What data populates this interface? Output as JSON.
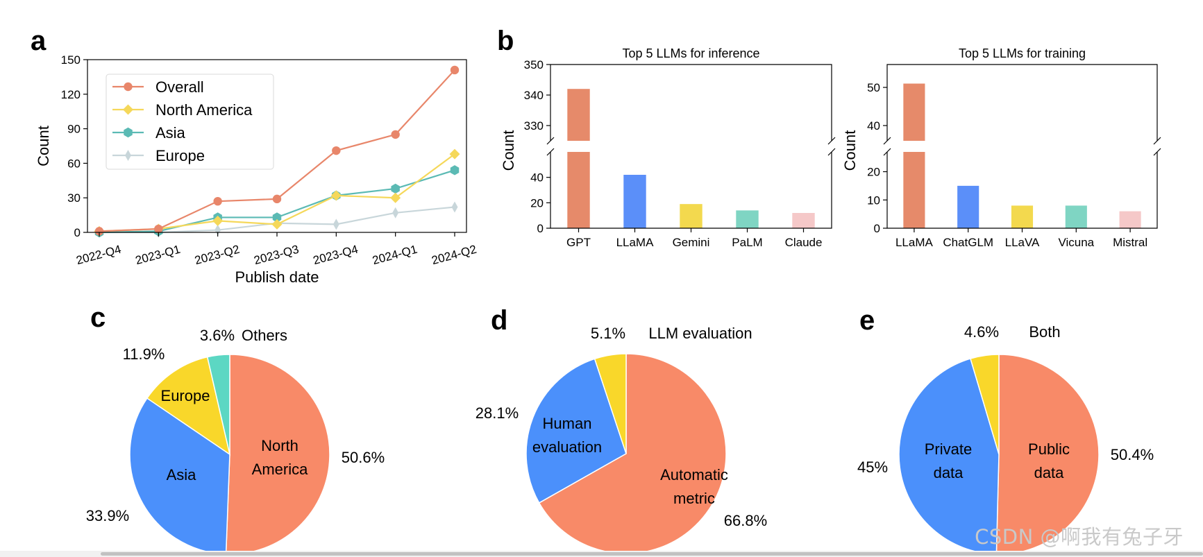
{
  "colors": {
    "overall": "#e8866a",
    "north_america": "#f5d85a",
    "asia": "#5bbab4",
    "europe": "#c8d6da",
    "gpt_llama_bar": "#e68a6a",
    "blue": "#5b8ff9",
    "yellow": "#f3d94e",
    "teal": "#7fd5c3",
    "pink": "#f5c8c8",
    "pie_orange": "#f88a68",
    "pie_blue": "#4b90fb",
    "pie_yellow": "#f9d72a",
    "pie_teal": "#5cd7c3"
  },
  "chart_data": [
    {
      "id": "a",
      "panel_letter": "a",
      "type": "line",
      "title": "",
      "xlabel": "Publish date",
      "ylabel": "Count",
      "categories": [
        "2022-Q4",
        "2023-Q1",
        "2023-Q2",
        "2023-Q3",
        "2023-Q4",
        "2024-Q1",
        "2024-Q2"
      ],
      "ylim": [
        0,
        150
      ],
      "yticks": [
        0,
        30,
        60,
        90,
        120,
        150
      ],
      "legend_position": "upper-left",
      "series": [
        {
          "name": "Overall",
          "marker": "circle",
          "values": [
            1,
            3,
            27,
            29,
            71,
            85,
            141
          ]
        },
        {
          "name": "North America",
          "marker": "diamond",
          "values": [
            1,
            3,
            10,
            7,
            32,
            30,
            68
          ]
        },
        {
          "name": "Asia",
          "marker": "hexagon",
          "values": [
            0,
            1,
            13,
            13,
            32,
            38,
            54
          ]
        },
        {
          "name": "Europe",
          "marker": "thin-diamond",
          "values": [
            0,
            0,
            2,
            8,
            7,
            17,
            22
          ]
        }
      ]
    },
    {
      "id": "b1",
      "panel_letter": "b",
      "type": "bar",
      "title": "Top 5 LLMs for inference",
      "ylabel": "Count",
      "broken_axis": true,
      "categories": [
        "GPT",
        "LLaMA",
        "Gemini",
        "PaLM",
        "Claude"
      ],
      "values": [
        342,
        42,
        19,
        14,
        12
      ],
      "upper_ylim": [
        325,
        350
      ],
      "upper_yticks": [
        330,
        340,
        350
      ],
      "lower_ylim": [
        0,
        60
      ],
      "lower_yticks": [
        0,
        20,
        40
      ]
    },
    {
      "id": "b2",
      "type": "bar",
      "title": "Top 5 LLMs for training",
      "ylabel": "Count",
      "broken_axis": true,
      "categories": [
        "LLaMA",
        "ChatGLM",
        "LLaVA",
        "Vicuna",
        "Mistral"
      ],
      "values": [
        51,
        15,
        8,
        8,
        6
      ],
      "upper_ylim": [
        36,
        56
      ],
      "upper_yticks": [
        40,
        50
      ],
      "lower_ylim": [
        0,
        27
      ],
      "lower_yticks": [
        0,
        10,
        20
      ]
    },
    {
      "id": "c",
      "panel_letter": "c",
      "type": "pie",
      "title": "",
      "slices": [
        {
          "label": "North\nAmerica",
          "value": 50.6,
          "pct": "50.6%"
        },
        {
          "label": "Asia",
          "value": 33.9,
          "pct": "33.9%"
        },
        {
          "label": "Europe",
          "value": 11.9,
          "pct": "11.9%"
        },
        {
          "label": "Others",
          "value": 3.6,
          "pct": "3.6%"
        }
      ]
    },
    {
      "id": "d",
      "panel_letter": "d",
      "type": "pie",
      "title": "",
      "slices": [
        {
          "label": "Automatic\nmetric",
          "value": 66.8,
          "pct": "66.8%"
        },
        {
          "label": "Human\nevaluation",
          "value": 28.1,
          "pct": "28.1%"
        },
        {
          "label": "LLM evaluation",
          "value": 5.1,
          "pct": "5.1%"
        }
      ]
    },
    {
      "id": "e",
      "panel_letter": "e",
      "type": "pie",
      "title": "",
      "slices": [
        {
          "label": "Public\ndata",
          "value": 50.4,
          "pct": "50.4%"
        },
        {
          "label": "Private\ndata",
          "value": 45,
          "pct": "45%"
        },
        {
          "label": "Both",
          "value": 4.6,
          "pct": "4.6%"
        }
      ]
    }
  ],
  "watermark": "CSDN @啊我有兔子牙"
}
